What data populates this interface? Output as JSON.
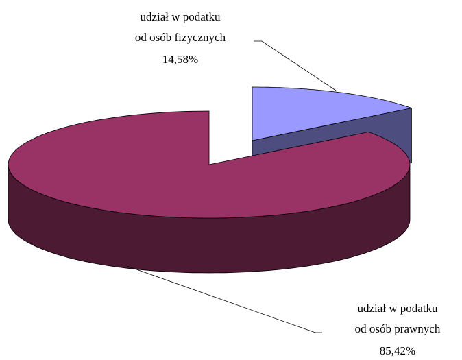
{
  "chart_data": {
    "type": "pie",
    "categories": [
      [
        "udział w podatku",
        "od osób fizycznych"
      ],
      [
        "udział w podatku",
        "od osób prawnych"
      ]
    ],
    "values": [
      14.58,
      85.42
    ],
    "value_labels": [
      "14,58%",
      "85,42%"
    ],
    "colors": [
      "#9999ff",
      "#993366"
    ]
  }
}
